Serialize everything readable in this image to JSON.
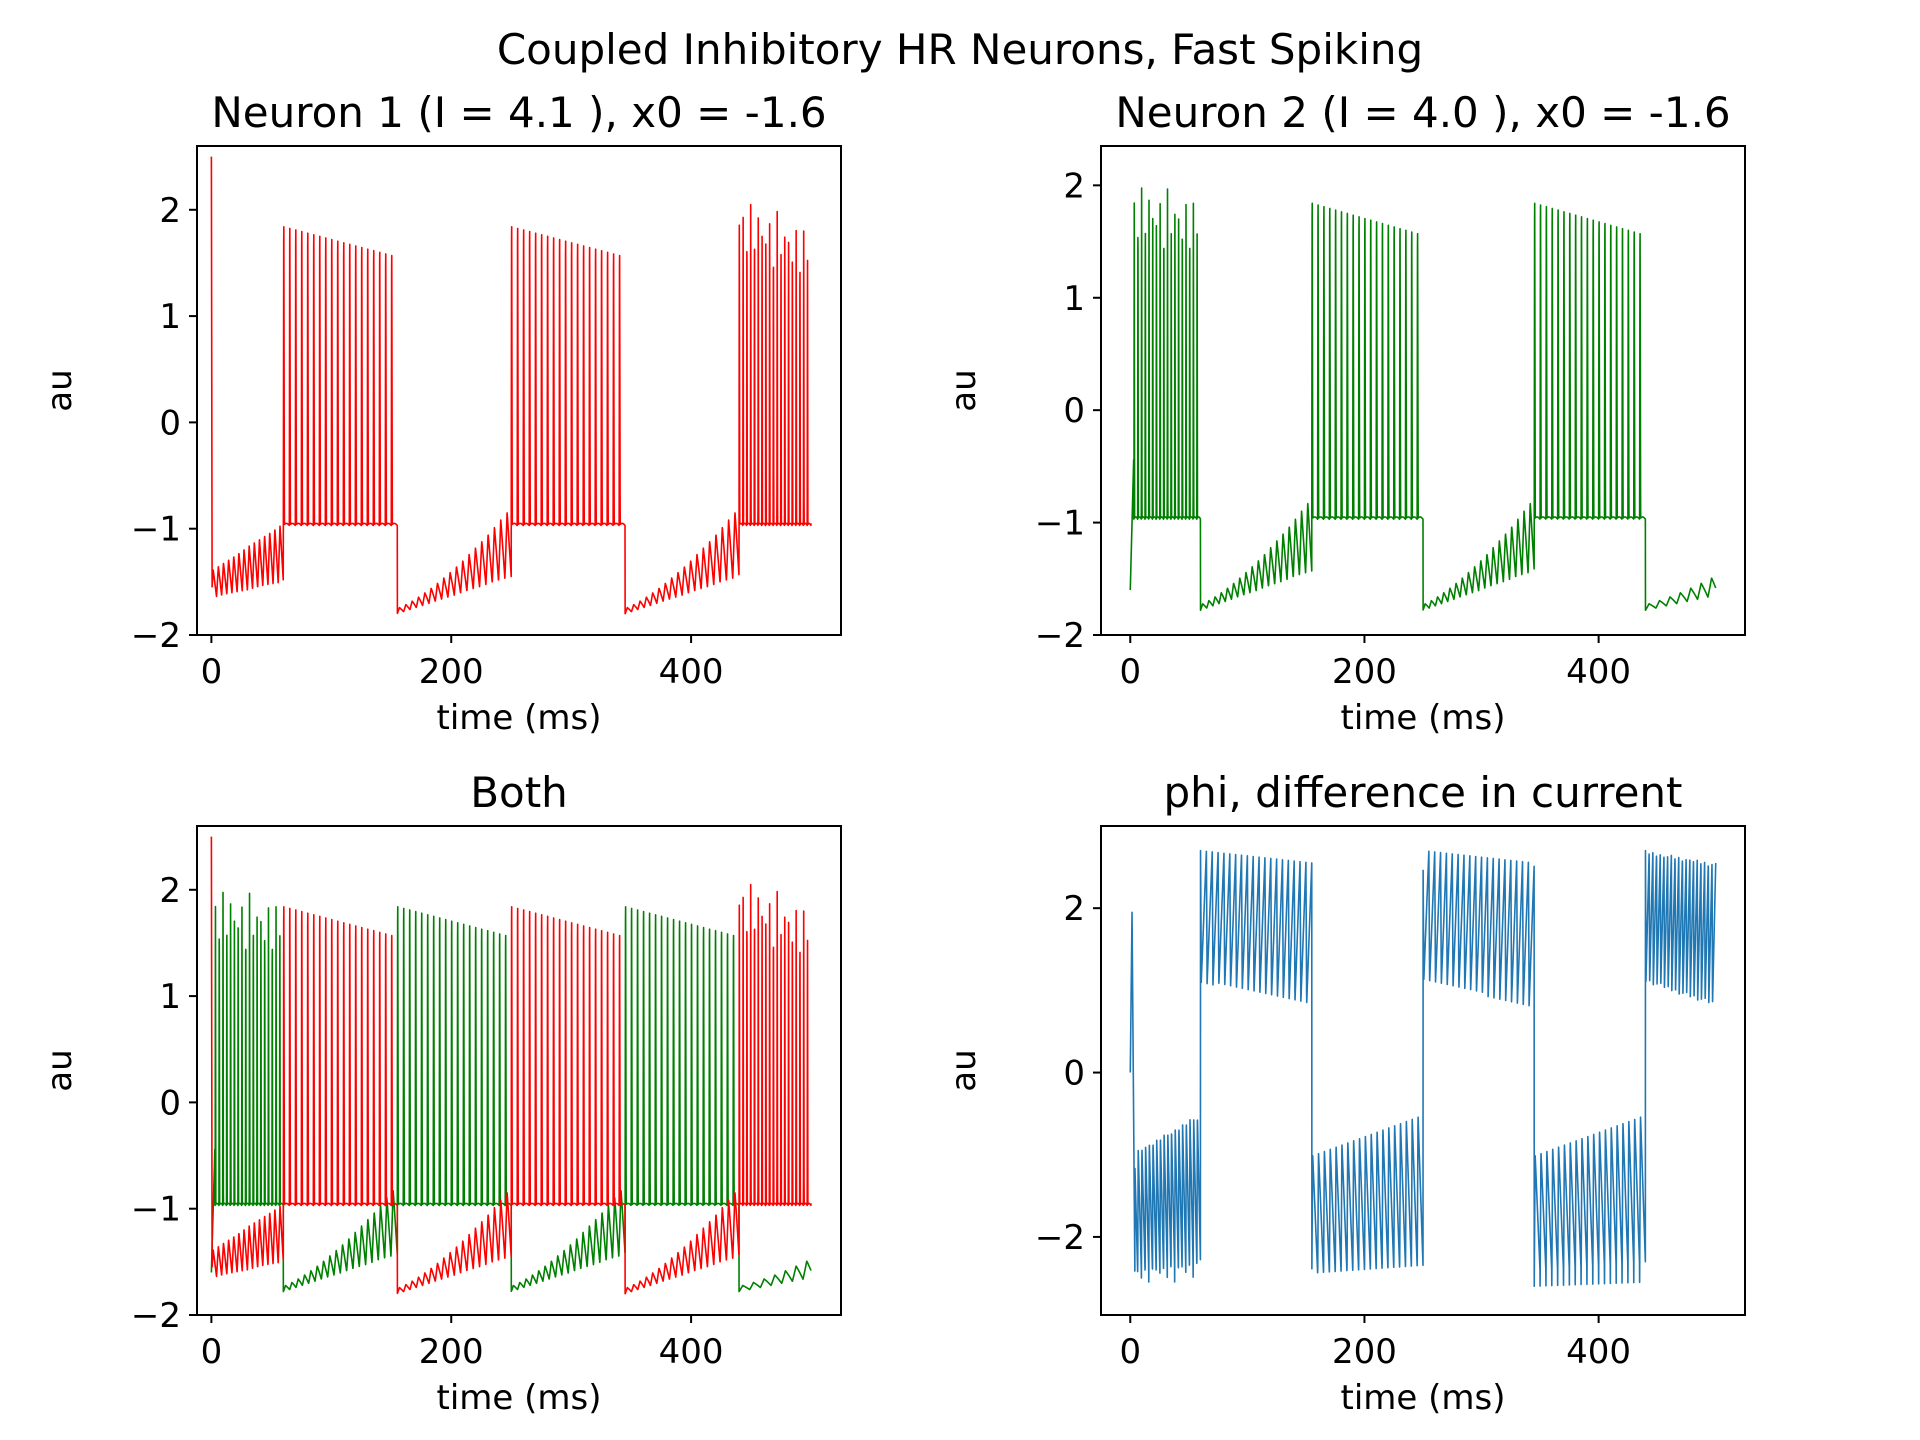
{
  "suptitle": "Coupled Inhibitory HR Neurons, Fast Spiking",
  "colors": {
    "neuron1": "#ff0000",
    "neuron2": "#008000",
    "phi": "#1f77b4"
  },
  "chart_data": [
    {
      "type": "line",
      "title": "Neuron 1 (I = 4.1 ), x0 = -1.6",
      "xlabel": "time (ms)",
      "ylabel": "au",
      "xlim": [
        -12,
        525
      ],
      "ylim": [
        -2.0,
        2.6
      ],
      "xticks": [
        0,
        200,
        400
      ],
      "yticks": [
        -2,
        -1,
        0,
        1,
        2
      ],
      "grid": false,
      "series": [
        {
          "key": "neuron1",
          "color": "#ff0000",
          "description": "initial spike 2.5 at t=0, hyperpolarized oscillation -1.6..-1.2 (t 0-60), burst t 60-155 peaks 2.15->1.85 trough -0.95, quiet t 155-250 min -1.8, burst t 250-345, quiet t 345-440, burst t 440-500"
        }
      ]
    },
    {
      "type": "line",
      "title": "Neuron 2 (I = 4.0 ), x0 = -1.6",
      "xlabel": "time (ms)",
      "ylabel": "au",
      "xlim": [
        -25,
        525
      ],
      "ylim": [
        -2.0,
        2.35
      ],
      "xticks": [
        0,
        200,
        400
      ],
      "yticks": [
        -2,
        -1,
        0,
        1,
        2
      ],
      "grid": false,
      "series": [
        {
          "key": "neuron2",
          "color": "#008000",
          "description": "burst t 0-60 peaks 2.05->1.9 trough -0.95, quiet t 60-155 min -1.8, burst t 155-250, quiet t 250-345, burst t 345-440, quiet t 440-500"
        }
      ]
    },
    {
      "type": "line",
      "title": "Both",
      "xlabel": "time (ms)",
      "ylabel": "au",
      "xlim": [
        -12,
        525
      ],
      "ylim": [
        -2.0,
        2.6
      ],
      "xticks": [
        0,
        200,
        400
      ],
      "yticks": [
        -2,
        -1,
        0,
        1,
        2
      ],
      "grid": false,
      "series": [
        {
          "key": "neuron2",
          "color": "#008000"
        },
        {
          "key": "neuron1",
          "color": "#ff0000"
        }
      ]
    },
    {
      "type": "line",
      "title": "phi, difference in current",
      "xlabel": "time (ms)",
      "ylabel": "au",
      "xlim": [
        -25,
        525
      ],
      "ylim": [
        -2.95,
        3.0
      ],
      "xticks": [
        0,
        200,
        400
      ],
      "yticks": [
        -2,
        0,
        2
      ],
      "grid": false,
      "series": [
        {
          "key": "phi",
          "color": "#1f77b4",
          "description": "starts 0, spike 1.95, oscillates -2.5..-0.7 (t 0-60), positive 2.7..1.0 (t 60-155), negative -2.7..-1.0 (t 155-250), positive (t 250-345), negative (t 345-440), positive (t 440-500)"
        }
      ]
    }
  ]
}
